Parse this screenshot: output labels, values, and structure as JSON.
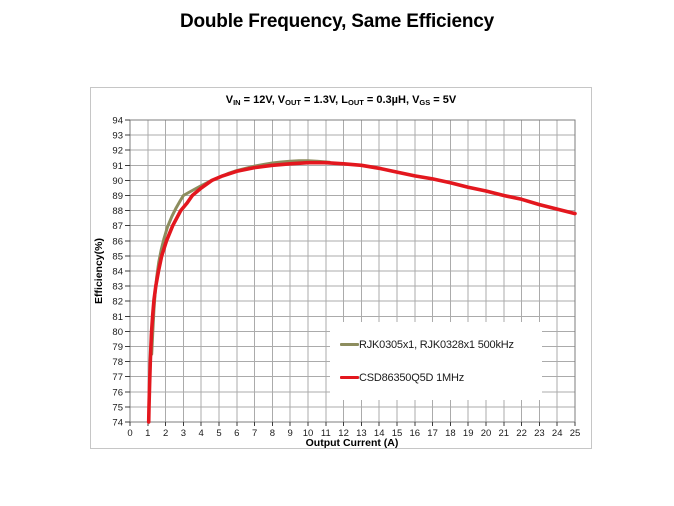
{
  "title": "Double Frequency, Same Efficiency",
  "subtitle": {
    "plain": "VIN = 12V, VOUT = 1.3V, LOUT = 0.3µH, VGS = 5V",
    "segments": [
      {
        "text": "V"
      },
      {
        "sub": "IN"
      },
      {
        "text": " = 12V, V"
      },
      {
        "sub": "OUT"
      },
      {
        "text": " = 1.3V, L"
      },
      {
        "sub": "OUT"
      },
      {
        "text": " = 0.3µH, V"
      },
      {
        "sub": "GS"
      },
      {
        "text": " = 5V"
      }
    ]
  },
  "chart_data": {
    "type": "line",
    "xlabel": "Output Current (A)",
    "ylabel": "Efficiency(%)",
    "xlim": [
      0,
      25
    ],
    "ylim": [
      74,
      94
    ],
    "x_ticks": [
      0,
      1,
      2,
      3,
      4,
      5,
      6,
      7,
      8,
      9,
      10,
      11,
      12,
      13,
      14,
      15,
      16,
      17,
      18,
      19,
      20,
      21,
      22,
      23,
      24,
      25
    ],
    "y_ticks": [
      74,
      75,
      76,
      77,
      78,
      79,
      80,
      81,
      82,
      83,
      84,
      85,
      86,
      87,
      88,
      89,
      90,
      91,
      92,
      93,
      94
    ],
    "grid": true,
    "legend_position": "inside-lower-right",
    "series": [
      {
        "name": "RJK0305x1, RJK0328x1 500kHz",
        "color": "#8d8d5e",
        "line_width": 3,
        "points": [
          [
            1.22,
            78.5
          ],
          [
            1.28,
            80
          ],
          [
            1.35,
            81.5
          ],
          [
            1.42,
            82.7
          ],
          [
            1.5,
            83.6
          ],
          [
            1.62,
            84.6
          ],
          [
            1.75,
            85.4
          ],
          [
            1.9,
            86.1
          ],
          [
            2.1,
            86.9
          ],
          [
            2.35,
            87.6
          ],
          [
            2.6,
            88.2
          ],
          [
            2.8,
            88.6
          ],
          [
            3.0,
            89.0
          ],
          [
            3.3,
            89.2
          ],
          [
            3.6,
            89.4
          ],
          [
            4.0,
            89.65
          ],
          [
            4.5,
            89.95
          ],
          [
            5.0,
            90.2
          ],
          [
            5.5,
            90.45
          ],
          [
            6.0,
            90.65
          ],
          [
            6.5,
            90.8
          ],
          [
            7.0,
            90.95
          ],
          [
            7.5,
            91.05
          ],
          [
            8.0,
            91.15
          ],
          [
            8.5,
            91.22
          ],
          [
            9.0,
            91.27
          ],
          [
            9.5,
            91.3
          ],
          [
            10.0,
            91.3
          ],
          [
            10.5,
            91.27
          ],
          [
            11.2,
            91.2
          ]
        ]
      },
      {
        "name": "CSD86350Q5D 1MHz",
        "color": "#e3171e",
        "line_width": 3.6,
        "points": [
          [
            1.05,
            74
          ],
          [
            1.07,
            75
          ],
          [
            1.1,
            76.5
          ],
          [
            1.14,
            78
          ],
          [
            1.2,
            79.8
          ],
          [
            1.27,
            81
          ],
          [
            1.35,
            82.1
          ],
          [
            1.45,
            83
          ],
          [
            1.6,
            84
          ],
          [
            1.78,
            85
          ],
          [
            2.05,
            86
          ],
          [
            2.4,
            87
          ],
          [
            2.85,
            88
          ],
          [
            3.2,
            88.5
          ],
          [
            3.5,
            89
          ],
          [
            4.0,
            89.5
          ],
          [
            4.6,
            90
          ],
          [
            5.2,
            90.3
          ],
          [
            6.0,
            90.6
          ],
          [
            7.0,
            90.85
          ],
          [
            8.0,
            91.0
          ],
          [
            9.0,
            91.1
          ],
          [
            10.0,
            91.17
          ],
          [
            11.0,
            91.17
          ],
          [
            12.0,
            91.1
          ],
          [
            13.0,
            91.0
          ],
          [
            14.0,
            90.8
          ],
          [
            15.0,
            90.55
          ],
          [
            16.0,
            90.3
          ],
          [
            17.0,
            90.1
          ],
          [
            18.0,
            89.85
          ],
          [
            19.0,
            89.55
          ],
          [
            20.0,
            89.3
          ],
          [
            21.0,
            89.0
          ],
          [
            22.0,
            88.75
          ],
          [
            23.0,
            88.4
          ],
          [
            24.0,
            88.1
          ],
          [
            25.0,
            87.8
          ]
        ]
      }
    ]
  },
  "colors": {
    "grid": "#ababab",
    "plot_border": "#7d7d7d",
    "tick": "#3c3c3c",
    "panel_border": "#c6c6c6",
    "background": "#ffffff",
    "series_500khz": "#8d8d5e",
    "series_1mhz": "#e3171e"
  }
}
